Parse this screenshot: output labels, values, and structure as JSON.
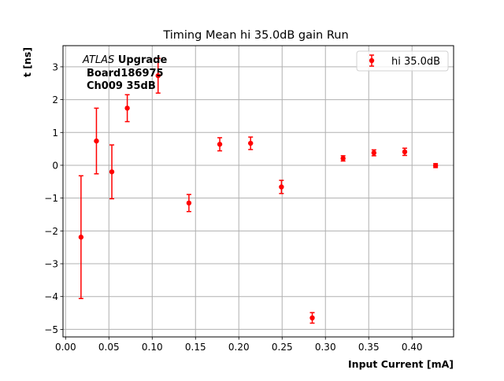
{
  "chart_data": {
    "type": "scatter",
    "title": "Timing Mean hi 35.0dB gain Run",
    "xlabel": "Input Current [mA]",
    "ylabel": "t [ns]",
    "xlim": [
      -0.003,
      0.448
    ],
    "ylim": [
      -5.23,
      3.645
    ],
    "xticks": [
      0.0,
      0.05,
      0.1,
      0.15,
      0.2,
      0.25,
      0.3,
      0.35,
      0.4
    ],
    "xtick_labels": [
      "0.00",
      "0.05",
      "0.10",
      "0.15",
      "0.20",
      "0.25",
      "0.30",
      "0.35",
      "0.40"
    ],
    "yticks": [
      -5,
      -4,
      -3,
      -2,
      -1,
      0,
      1,
      2,
      3
    ],
    "ytick_labels": [
      "−5",
      "−4",
      "−3",
      "−2",
      "−1",
      "0",
      "1",
      "2",
      "3"
    ],
    "grid": true,
    "legend_position": "top-right",
    "annotation": {
      "italic": "ATLAS",
      "bold": "Upgrade",
      "line2": "Board186975",
      "line3": "Ch009 35dB"
    },
    "series": [
      {
        "name": "hi 35.0dB",
        "color": "#ff0000",
        "x": [
          0.0178,
          0.0356,
          0.0534,
          0.0712,
          0.1068,
          0.1424,
          0.178,
          0.2136,
          0.2492,
          0.2848,
          0.3204,
          0.356,
          0.3916,
          0.4272
        ],
        "y": [
          -2.19,
          0.74,
          -0.2,
          1.74,
          2.73,
          -1.15,
          0.64,
          0.67,
          -0.66,
          -4.65,
          0.21,
          0.38,
          0.41,
          -0.01
        ],
        "yerr": [
          1.87,
          1.0,
          0.82,
          0.41,
          0.53,
          0.26,
          0.2,
          0.19,
          0.2,
          0.16,
          0.08,
          0.09,
          0.11,
          0.06
        ]
      }
    ]
  }
}
